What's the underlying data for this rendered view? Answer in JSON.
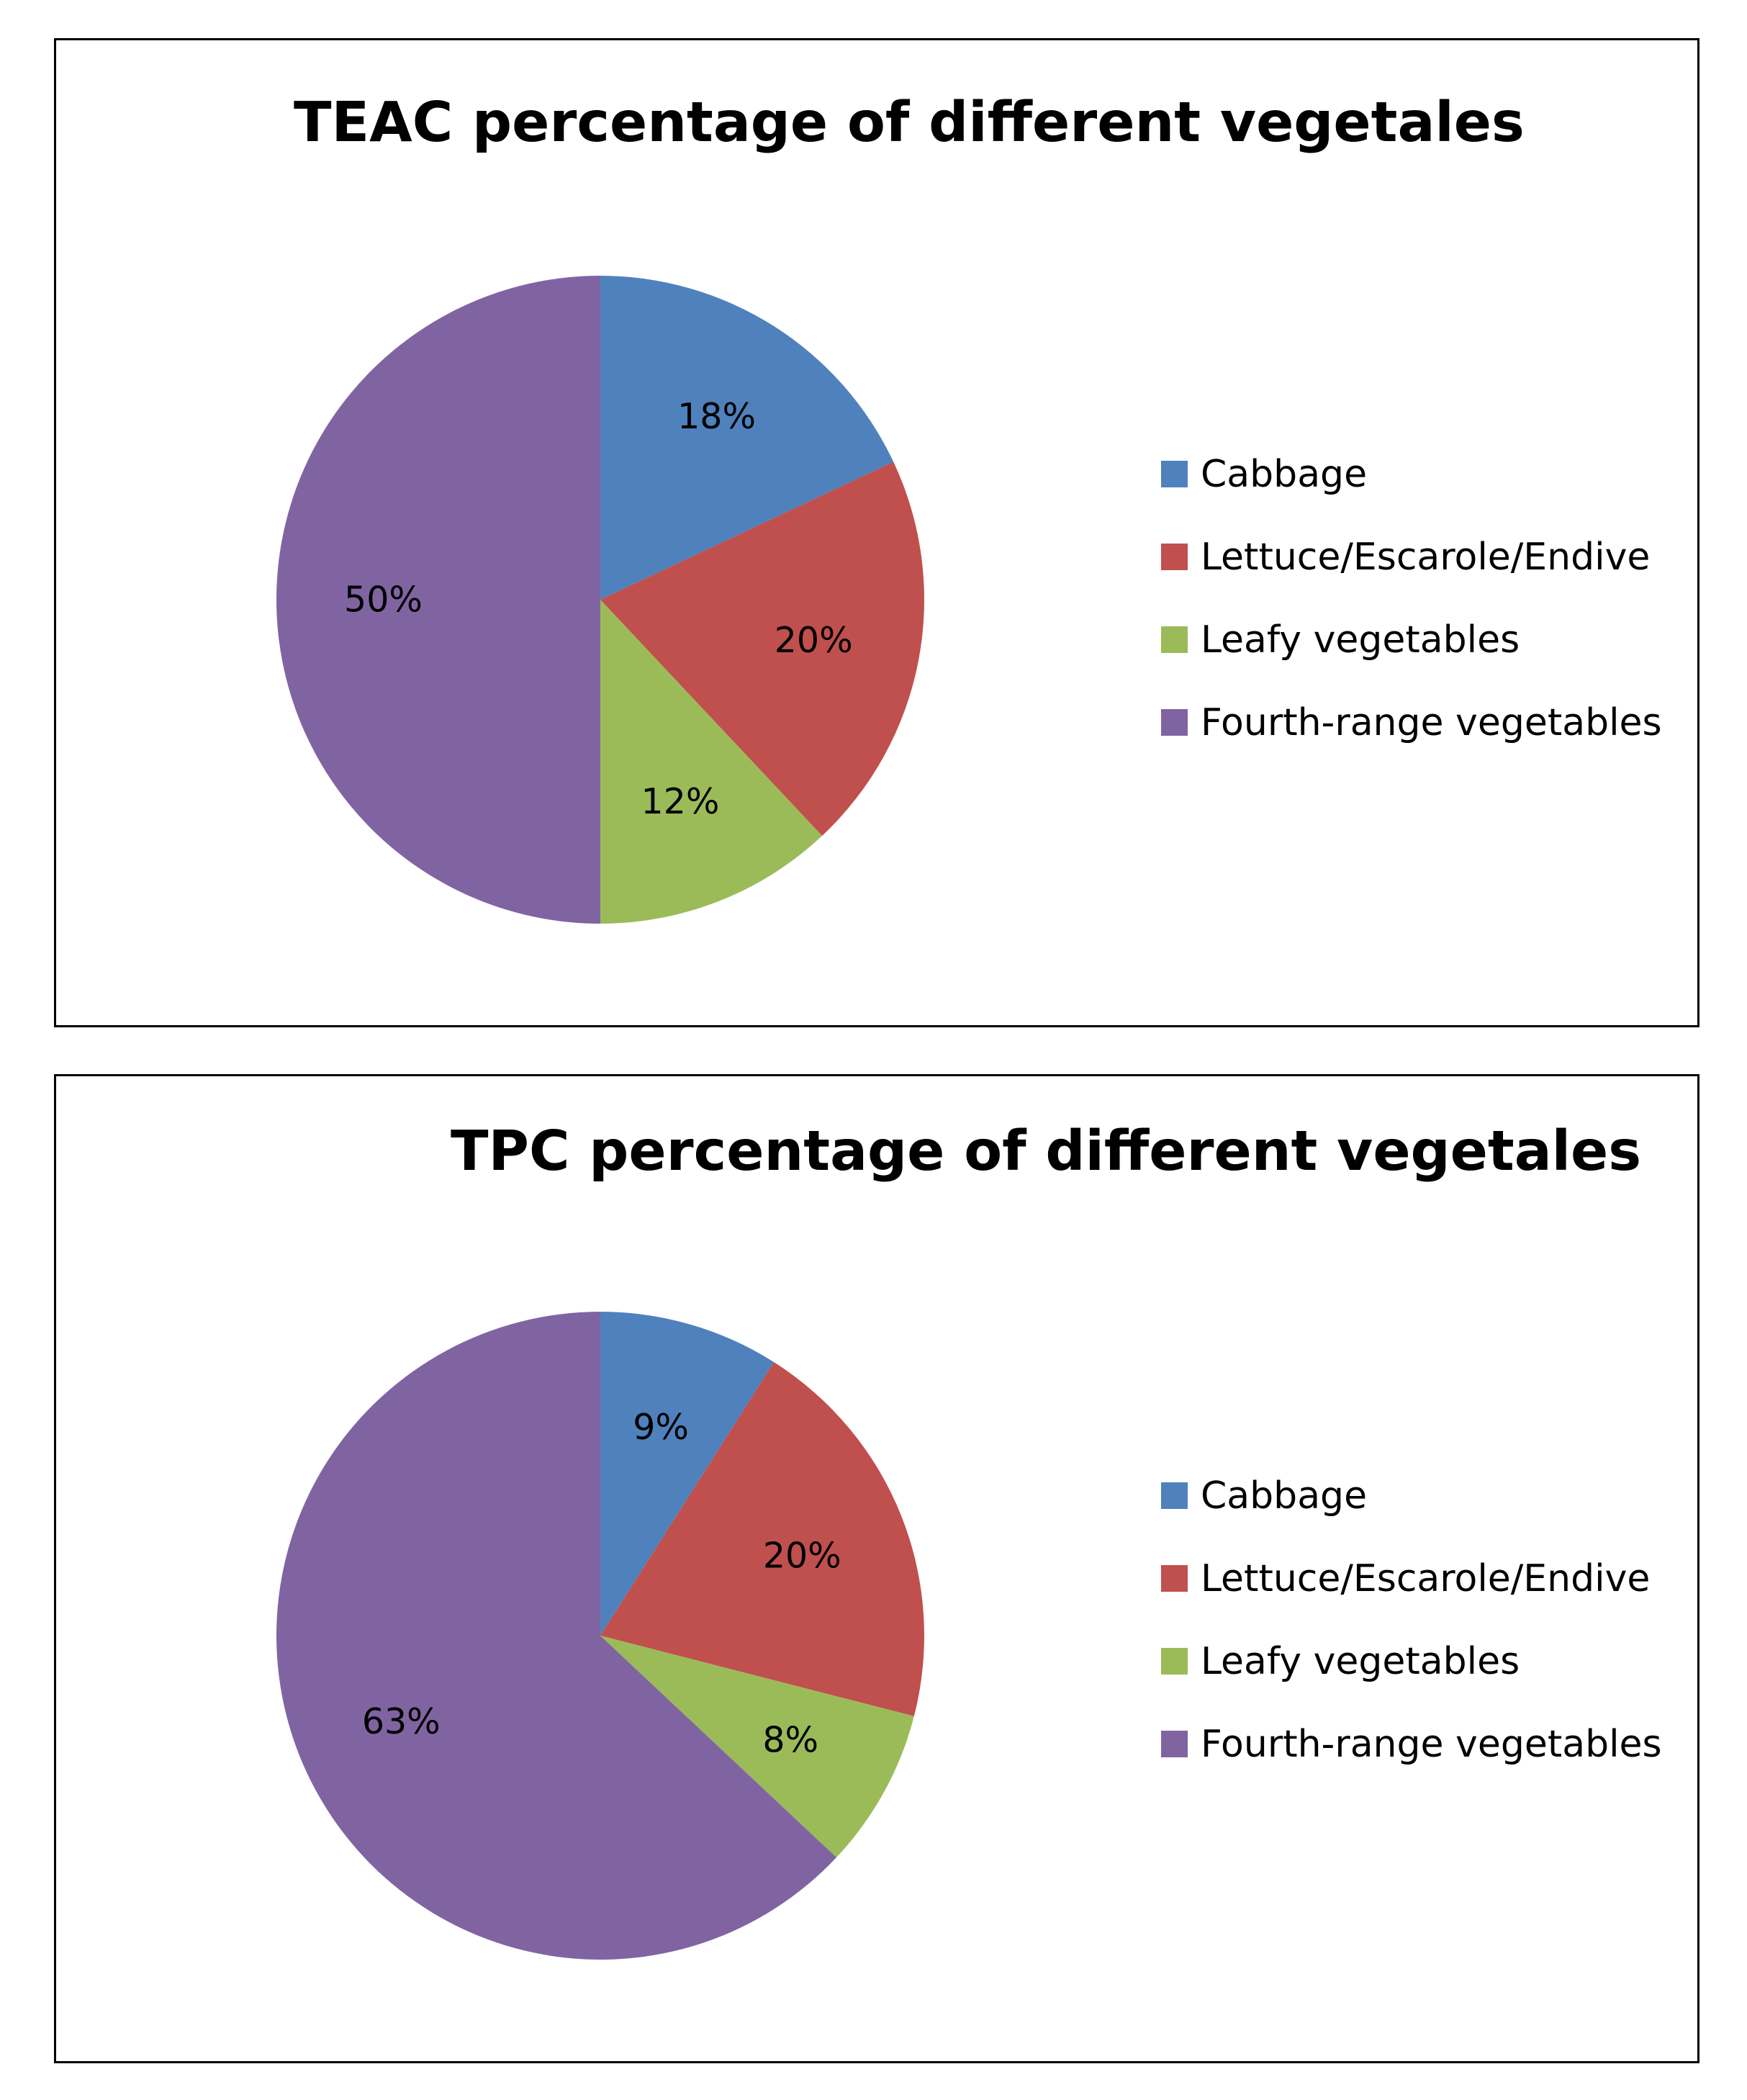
{
  "chart_data": [
    {
      "type": "pie",
      "title": "TEAC percentage of different vegetales",
      "categories": [
        "Cabbage",
        "Lettuce/Escarole/Endive",
        "Leafy vegetables",
        "Fourth-range vegetables"
      ],
      "values": [
        18,
        20,
        12,
        50
      ],
      "data_labels": [
        "18%",
        "20%",
        "12%",
        "50%"
      ],
      "colors": [
        "#4F81BD",
        "#C0504D",
        "#9BBB59",
        "#8064A2"
      ],
      "legend": "right"
    },
    {
      "type": "pie",
      "title": "TPC percentage of different vegetales",
      "categories": [
        "Cabbage",
        "Lettuce/Escarole/Endive",
        "Leafy vegetables",
        "Fourth-range vegetables"
      ],
      "values": [
        9,
        20,
        8,
        63
      ],
      "data_labels": [
        "9%",
        "20%",
        "8%",
        "63%"
      ],
      "colors": [
        "#4F81BD",
        "#C0504D",
        "#9BBB59",
        "#8064A2"
      ],
      "legend": "right"
    }
  ]
}
